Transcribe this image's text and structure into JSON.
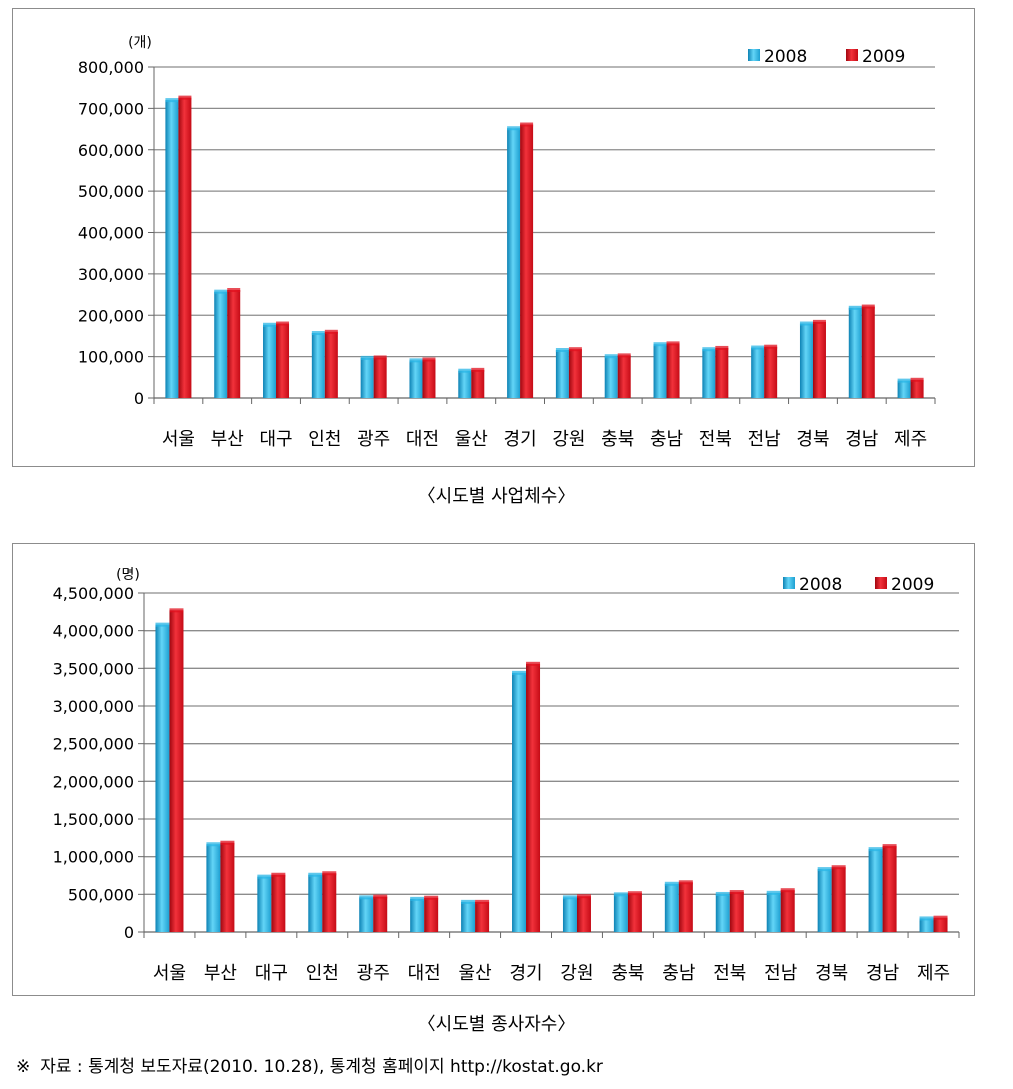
{
  "colors": {
    "y2008": "#29b6e6",
    "y2009": "#e0101e",
    "grid": "#8c8c8c"
  },
  "chart_data": [
    {
      "type": "bar",
      "unit": "(개)",
      "caption": "〈시도별 사업체수〉",
      "categories": [
        "서울",
        "부산",
        "대구",
        "인천",
        "광주",
        "대전",
        "울산",
        "경기",
        "강원",
        "충북",
        "충남",
        "전북",
        "전남",
        "경북",
        "경남",
        "제주"
      ],
      "series": [
        {
          "name": "2008",
          "values": [
            720000,
            257000,
            177000,
            157000,
            97000,
            91000,
            66000,
            652000,
            116000,
            101000,
            130000,
            118000,
            122000,
            180000,
            218000,
            42000
          ]
        },
        {
          "name": "2009",
          "values": [
            726000,
            261000,
            180000,
            160000,
            98000,
            93000,
            68000,
            661000,
            118000,
            103000,
            132000,
            121000,
            124000,
            184000,
            221000,
            44000
          ]
        }
      ],
      "ylim": [
        0,
        800000
      ],
      "yticks": [
        "0",
        "100,000",
        "200,000",
        "300,000",
        "400,000",
        "500,000",
        "600,000",
        "700,000",
        "800,000"
      ],
      "grid": true,
      "legend": "top-right"
    },
    {
      "type": "bar",
      "unit": "(명)",
      "caption": "〈시도별 종사자수〉",
      "categories": [
        "서울",
        "부산",
        "대구",
        "인천",
        "광주",
        "대전",
        "울산",
        "경기",
        "강원",
        "충북",
        "충남",
        "전북",
        "전남",
        "경북",
        "경남",
        "제주"
      ],
      "series": [
        {
          "name": "2008",
          "values": [
            4080000,
            1165000,
            735000,
            760000,
            460000,
            440000,
            400000,
            3440000,
            460000,
            500000,
            640000,
            505000,
            520000,
            835000,
            1100000,
            180000
          ]
        },
        {
          "name": "2009",
          "values": [
            4270000,
            1185000,
            760000,
            780000,
            470000,
            455000,
            400000,
            3560000,
            475000,
            515000,
            660000,
            530000,
            555000,
            860000,
            1140000,
            190000
          ]
        }
      ],
      "ylim": [
        0,
        4500000
      ],
      "yticks": [
        "0",
        "500,000",
        "1,000,000",
        "1,500,000",
        "2,000,000",
        "2,500,000",
        "3,000,000",
        "3,500,000",
        "4,000,000",
        "4,500,000"
      ],
      "grid": true,
      "legend": "top-right"
    }
  ],
  "source": {
    "mark": "※",
    "text": "자료 : 통계청 보도자료(2010. 10.28), 통계청 홈페이지 http://kostat.go.kr"
  }
}
